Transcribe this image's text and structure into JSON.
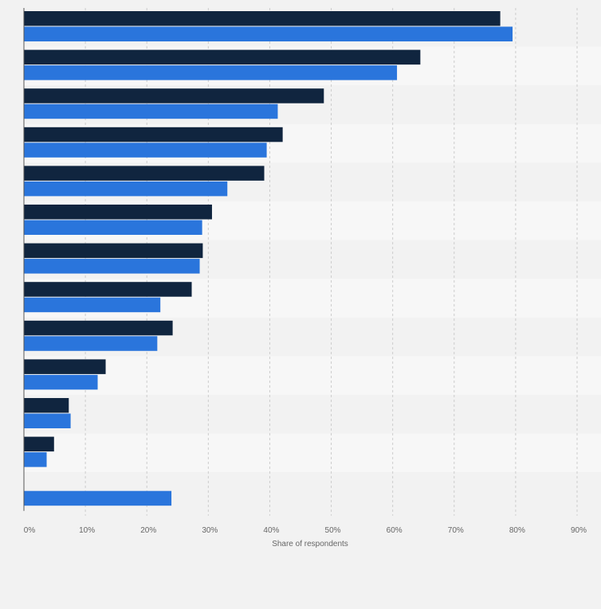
{
  "colors": {
    "background": "#f2f2f2",
    "band_light": "#f7f7f7",
    "band_dark": "#f2f2f2",
    "series_1": "#10253f",
    "series_2": "#2a75dc",
    "grid": "#cccccc",
    "axis": "#555555",
    "tick_text": "#666666"
  },
  "chart_data": {
    "type": "bar",
    "orientation": "horizontal",
    "title": "",
    "xlabel": "Share of respondents",
    "ylabel": "",
    "xlim": [
      0,
      90
    ],
    "x_ticks": [
      "0%",
      "10%",
      "20%",
      "30%",
      "40%",
      "50%",
      "60%",
      "70%",
      "80%",
      "90%"
    ],
    "grid": true,
    "category_count": 13,
    "series": [
      {
        "color": "#10253f",
        "values": [
          77.5,
          64.5,
          48.8,
          42.1,
          39.1,
          30.6,
          29.1,
          27.3,
          24.2,
          13.3,
          7.3,
          4.9,
          null
        ]
      },
      {
        "color": "#2a75dc",
        "values": [
          79.5,
          60.7,
          41.3,
          39.5,
          33.1,
          29.0,
          28.6,
          22.2,
          21.7,
          12.0,
          7.6,
          3.7,
          24.0
        ]
      }
    ]
  }
}
